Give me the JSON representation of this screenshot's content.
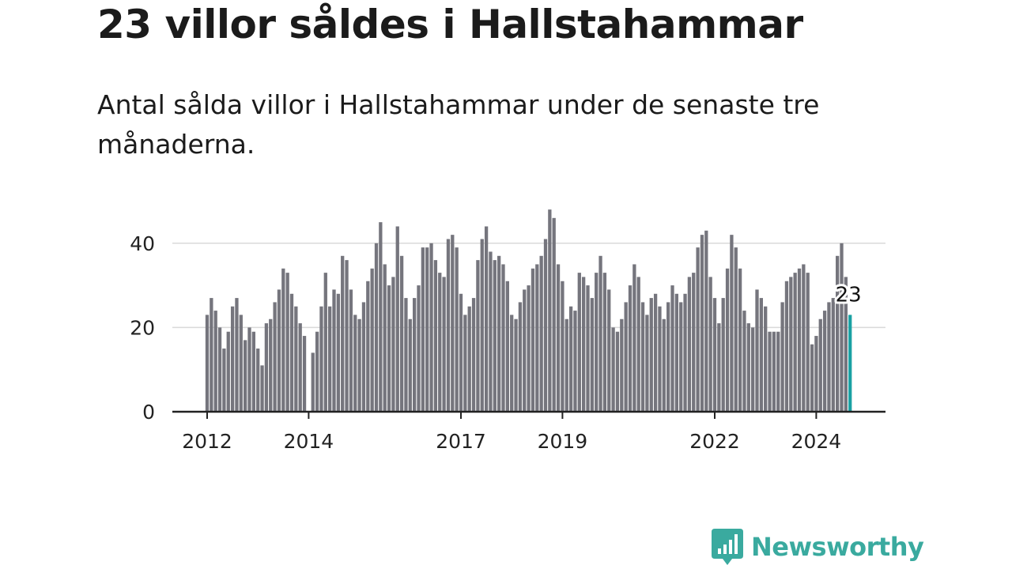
{
  "title": "23 villor såldes i Hallstahammar",
  "subtitle": "Antal sålda villor i Hallstahammar under de senaste tre månaderna.",
  "brand": {
    "name": "Newsworthy",
    "logo_icon": "bar-chart-logo-icon",
    "color": "#3aaa9f"
  },
  "colors": {
    "bar": "#75757d",
    "highlight": "#1aa1a3",
    "grid": "#d9d9d9",
    "axis": "#222222",
    "text": "#222222"
  },
  "chart_data": {
    "type": "bar",
    "x_start": "2012-01",
    "interval": "month",
    "values": [
      23,
      27,
      24,
      20,
      15,
      19,
      25,
      27,
      23,
      17,
      20,
      19,
      15,
      11,
      21,
      22,
      26,
      29,
      34,
      33,
      28,
      25,
      21,
      18,
      null,
      14,
      19,
      25,
      33,
      25,
      29,
      28,
      37,
      36,
      29,
      23,
      22,
      26,
      31,
      34,
      40,
      45,
      35,
      30,
      32,
      44,
      37,
      27,
      22,
      27,
      30,
      39,
      39,
      40,
      36,
      33,
      32,
      41,
      42,
      39,
      28,
      23,
      25,
      27,
      36,
      41,
      44,
      38,
      36,
      37,
      35,
      31,
      23,
      22,
      26,
      29,
      30,
      34,
      35,
      37,
      41,
      48,
      46,
      35,
      31,
      22,
      25,
      24,
      33,
      32,
      30,
      27,
      33,
      37,
      33,
      29,
      20,
      19,
      22,
      26,
      30,
      35,
      32,
      26,
      23,
      27,
      28,
      25,
      22,
      26,
      30,
      28,
      26,
      28,
      32,
      33,
      39,
      42,
      43,
      32,
      27,
      21,
      27,
      34,
      42,
      39,
      34,
      24,
      21,
      20,
      29,
      27,
      25,
      19,
      19,
      19,
      26,
      31,
      32,
      33,
      34,
      35,
      33,
      16,
      18,
      22,
      24,
      26,
      27,
      37,
      40,
      32,
      23
    ],
    "highlight_index": 152,
    "highlight_label": "23",
    "xtick_labels": [
      "2012",
      "2014",
      "2017",
      "2019",
      "2022",
      "2024"
    ],
    "yticks": [
      0,
      20,
      40
    ],
    "ylim": [
      0,
      50
    ],
    "grid": true
  }
}
